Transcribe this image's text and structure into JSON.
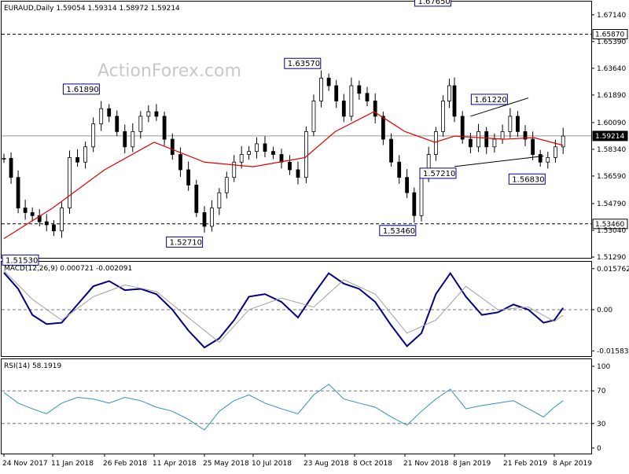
{
  "header": {
    "symbol_line": "EURAUD,Daily  1.59054 1.59314 1.58972 1.59214"
  },
  "watermark": "ActionForex.com",
  "colors": {
    "candle": "#000000",
    "ma": "#e00000",
    "macd": "#000080",
    "signal": "#a0a0a0",
    "rsi": "#2f8fc9",
    "hline": "#666666",
    "price_box_bg": "#000000",
    "price_box_text": "#ffffff"
  },
  "chart_data": [
    {
      "type": "candlestick",
      "title": "EURAUD,Daily",
      "ohlc_last": {
        "open": 1.59054,
        "high": 1.59314,
        "low": 1.58972,
        "close": 1.59214
      },
      "ylim": [
        1.5129,
        1.6785
      ],
      "y_ticks": [
        "1.67140",
        "1.65390",
        "1.63640",
        "1.61890",
        "1.60090",
        "1.58340",
        "1.56590",
        "1.54790",
        "1.53040",
        "1.51290"
      ],
      "x_tick_labels": [
        "24 Nov 2017",
        "11 Jan 2018",
        "26 Feb 2018",
        "11 Apr 2018",
        "25 May 2018",
        "10 Jul 2018",
        "23 Aug 2018",
        "8 Oct 2018",
        "21 Nov 2018",
        "8 Jan 2019",
        "21 Feb 2019",
        "8 Apr 2019"
      ],
      "x_tick_dates": [
        "2017-11-24",
        "2018-01-11",
        "2018-02-26",
        "2018-04-11",
        "2018-05-25",
        "2018-07-10",
        "2018-08-23",
        "2018-10-08",
        "2018-11-21",
        "2019-01-08",
        "2019-02-21",
        "2019-04-08"
      ],
      "horizontal_levels": [
        {
          "value": 1.6587,
          "label": "1.65870",
          "style": "dashed"
        },
        {
          "value": 1.5346,
          "label": "1.53460",
          "style": "dashed"
        },
        {
          "value": 1.59214,
          "label": "1.59214",
          "style": "solid"
        }
      ],
      "annotations": [
        {
          "label": "1.51530",
          "value": 1.5153,
          "date": "2017-12-08"
        },
        {
          "label": "1.61890",
          "value": 1.6189,
          "date": "2018-02-20"
        },
        {
          "label": "1.52710",
          "value": 1.5271,
          "date": "2018-05-22"
        },
        {
          "label": "1.63570",
          "value": 1.6357,
          "date": "2018-09-05"
        },
        {
          "label": "1.53460",
          "value": 1.5346,
          "date": "2018-11-30"
        },
        {
          "label": "1.67650",
          "value": 1.6765,
          "date": "2019-01-03"
        },
        {
          "label": "1.57210",
          "value": 1.5721,
          "date": "2019-01-08"
        },
        {
          "label": "1.61220",
          "value": 1.6122,
          "date": "2019-02-22"
        },
        {
          "label": "1.56830",
          "value": 1.5683,
          "date": "2019-03-29"
        }
      ],
      "close_series": [
        [
          "2017-11-24",
          1.5775
        ],
        [
          "2017-12-01",
          1.565
        ],
        [
          "2017-12-08",
          1.545
        ],
        [
          "2017-12-15",
          1.542
        ],
        [
          "2017-12-22",
          1.54
        ],
        [
          "2017-12-29",
          1.536
        ],
        [
          "2018-01-05",
          1.534
        ],
        [
          "2018-01-12",
          1.53
        ],
        [
          "2018-01-19",
          1.545
        ],
        [
          "2018-01-26",
          1.578
        ],
        [
          "2018-02-02",
          1.575
        ],
        [
          "2018-02-09",
          1.585
        ],
        [
          "2018-02-16",
          1.6
        ],
        [
          "2018-02-23",
          1.61
        ],
        [
          "2018-03-02",
          1.605
        ],
        [
          "2018-03-09",
          1.595
        ],
        [
          "2018-03-16",
          1.585
        ],
        [
          "2018-03-23",
          1.595
        ],
        [
          "2018-03-30",
          1.605
        ],
        [
          "2018-04-06",
          1.608
        ],
        [
          "2018-04-13",
          1.605
        ],
        [
          "2018-04-20",
          1.59
        ],
        [
          "2018-04-27",
          1.58
        ],
        [
          "2018-05-04",
          1.57
        ],
        [
          "2018-05-11",
          1.56
        ],
        [
          "2018-05-18",
          1.542
        ],
        [
          "2018-05-25",
          1.533
        ],
        [
          "2018-06-01",
          1.545
        ],
        [
          "2018-06-08",
          1.555
        ],
        [
          "2018-06-15",
          1.565
        ],
        [
          "2018-06-22",
          1.575
        ],
        [
          "2018-06-29",
          1.58
        ],
        [
          "2018-07-06",
          1.582
        ],
        [
          "2018-07-13",
          1.587
        ],
        [
          "2018-07-20",
          1.582
        ],
        [
          "2018-07-27",
          1.58
        ],
        [
          "2018-08-03",
          1.575
        ],
        [
          "2018-08-10",
          1.57
        ],
        [
          "2018-08-17",
          1.565
        ],
        [
          "2018-08-24",
          1.595
        ],
        [
          "2018-08-31",
          1.615
        ],
        [
          "2018-09-07",
          1.63
        ],
        [
          "2018-09-14",
          1.625
        ],
        [
          "2018-09-21",
          1.615
        ],
        [
          "2018-09-28",
          1.605
        ],
        [
          "2018-10-05",
          1.625
        ],
        [
          "2018-10-12",
          1.62
        ],
        [
          "2018-10-19",
          1.615
        ],
        [
          "2018-10-26",
          1.605
        ],
        [
          "2018-11-02",
          1.59
        ],
        [
          "2018-11-09",
          1.575
        ],
        [
          "2018-11-16",
          1.565
        ],
        [
          "2018-11-23",
          1.555
        ],
        [
          "2018-11-30",
          1.54
        ],
        [
          "2018-12-07",
          1.565
        ],
        [
          "2018-12-14",
          1.58
        ],
        [
          "2018-12-21",
          1.595
        ],
        [
          "2018-12-28",
          1.615
        ],
        [
          "2019-01-03",
          1.625
        ],
        [
          "2019-01-08",
          1.605
        ],
        [
          "2019-01-15",
          1.59
        ],
        [
          "2019-01-22",
          1.585
        ],
        [
          "2019-01-29",
          1.595
        ],
        [
          "2019-02-05",
          1.585
        ],
        [
          "2019-02-12",
          1.59
        ],
        [
          "2019-02-19",
          1.595
        ],
        [
          "2019-02-26",
          1.605
        ],
        [
          "2019-03-05",
          1.595
        ],
        [
          "2019-03-12",
          1.59
        ],
        [
          "2019-03-19",
          1.58
        ],
        [
          "2019-03-26",
          1.575
        ],
        [
          "2019-04-02",
          1.578
        ],
        [
          "2019-04-09",
          1.585
        ],
        [
          "2019-04-16",
          1.5921
        ]
      ],
      "ma_series": [
        [
          "2017-11-24",
          1.525
        ],
        [
          "2018-01-11",
          1.545
        ],
        [
          "2018-02-26",
          1.57
        ],
        [
          "2018-04-11",
          1.588
        ],
        [
          "2018-05-25",
          1.575
        ],
        [
          "2018-07-10",
          1.572
        ],
        [
          "2018-08-23",
          1.578
        ],
        [
          "2018-09-20",
          1.595
        ],
        [
          "2018-10-25",
          1.608
        ],
        [
          "2018-11-21",
          1.595
        ],
        [
          "2018-12-20",
          1.588
        ],
        [
          "2019-01-08",
          1.592
        ],
        [
          "2019-02-21",
          1.59
        ],
        [
          "2019-03-20",
          1.591
        ],
        [
          "2019-04-16",
          1.586
        ]
      ],
      "trendlines": [
        {
          "from": [
            "2019-01-08",
            1.5721
          ],
          "to": [
            "2019-03-29",
            1.579
          ]
        },
        {
          "from": [
            "2019-01-22",
            1.605
          ],
          "to": [
            "2019-03-15",
            1.617
          ]
        }
      ]
    },
    {
      "type": "line",
      "title": "MACD(12,26,9) 0.000721 -0.002091",
      "ylim": [
        -0.0175,
        0.0175
      ],
      "y_ticks": [
        "0.015762",
        "0.00",
        "-0.015834"
      ],
      "series": [
        {
          "name": "MACD",
          "points": [
            [
              "2017-11-24",
              0.0142
            ],
            [
              "2017-12-08",
              0.008
            ],
            [
              "2017-12-22",
              -0.002
            ],
            [
              "2018-01-05",
              -0.0055
            ],
            [
              "2018-01-19",
              -0.005
            ],
            [
              "2018-02-02",
              0.002
            ],
            [
              "2018-02-16",
              0.009
            ],
            [
              "2018-03-02",
              0.011
            ],
            [
              "2018-03-16",
              0.0075
            ],
            [
              "2018-03-30",
              0.008
            ],
            [
              "2018-04-13",
              0.006
            ],
            [
              "2018-04-27",
              0.0
            ],
            [
              "2018-05-11",
              -0.008
            ],
            [
              "2018-05-25",
              -0.0145
            ],
            [
              "2018-06-08",
              -0.011
            ],
            [
              "2018-06-22",
              -0.004
            ],
            [
              "2018-07-06",
              0.005
            ],
            [
              "2018-07-20",
              0.006
            ],
            [
              "2018-08-03",
              0.003
            ],
            [
              "2018-08-17",
              -0.003
            ],
            [
              "2018-08-31",
              0.006
            ],
            [
              "2018-09-14",
              0.014
            ],
            [
              "2018-09-28",
              0.01
            ],
            [
              "2018-10-12",
              0.008
            ],
            [
              "2018-10-26",
              0.003
            ],
            [
              "2018-11-09",
              -0.006
            ],
            [
              "2018-11-23",
              -0.014
            ],
            [
              "2018-12-07",
              -0.009
            ],
            [
              "2018-12-21",
              0.006
            ],
            [
              "2019-01-04",
              0.014
            ],
            [
              "2019-01-18",
              0.005
            ],
            [
              "2019-02-01",
              -0.002
            ],
            [
              "2019-02-15",
              -0.001
            ],
            [
              "2019-03-01",
              0.002
            ],
            [
              "2019-03-15",
              0.0
            ],
            [
              "2019-03-29",
              -0.005
            ],
            [
              "2019-04-08",
              -0.004
            ],
            [
              "2019-04-16",
              0.0007
            ]
          ]
        },
        {
          "name": "Signal",
          "points": [
            [
              "2017-11-24",
              0.015
            ],
            [
              "2017-12-22",
              0.004
            ],
            [
              "2018-01-19",
              -0.004
            ],
            [
              "2018-02-16",
              0.005
            ],
            [
              "2018-03-16",
              0.0095
            ],
            [
              "2018-04-13",
              0.007
            ],
            [
              "2018-05-11",
              -0.003
            ],
            [
              "2018-06-08",
              -0.0125
            ],
            [
              "2018-07-06",
              0.0
            ],
            [
              "2018-08-03",
              0.0045
            ],
            [
              "2018-08-31",
              0.001
            ],
            [
              "2018-09-28",
              0.0115
            ],
            [
              "2018-10-26",
              0.006
            ],
            [
              "2018-11-23",
              -0.009
            ],
            [
              "2018-12-21",
              -0.004
            ],
            [
              "2019-01-18",
              0.009
            ],
            [
              "2019-02-15",
              0.0
            ],
            [
              "2019-03-15",
              0.001
            ],
            [
              "2019-04-08",
              -0.0045
            ],
            [
              "2019-04-16",
              -0.0021
            ]
          ]
        }
      ]
    },
    {
      "type": "line",
      "title": "RSI(14) 58.1919",
      "ylim": [
        0,
        100
      ],
      "y_ticks": [
        "100",
        "70",
        "30",
        "0"
      ],
      "levels": [
        70,
        30
      ],
      "series": [
        {
          "name": "RSI(14)",
          "points": [
            [
              "2017-11-24",
              68
            ],
            [
              "2017-12-08",
              55
            ],
            [
              "2017-12-22",
              48
            ],
            [
              "2018-01-05",
              42
            ],
            [
              "2018-01-19",
              55
            ],
            [
              "2018-02-02",
              62
            ],
            [
              "2018-02-16",
              60
            ],
            [
              "2018-03-02",
              55
            ],
            [
              "2018-03-16",
              62
            ],
            [
              "2018-03-30",
              58
            ],
            [
              "2018-04-13",
              50
            ],
            [
              "2018-04-27",
              45
            ],
            [
              "2018-05-11",
              35
            ],
            [
              "2018-05-25",
              22
            ],
            [
              "2018-06-08",
              45
            ],
            [
              "2018-06-22",
              58
            ],
            [
              "2018-07-06",
              65
            ],
            [
              "2018-07-20",
              55
            ],
            [
              "2018-08-03",
              48
            ],
            [
              "2018-08-17",
              42
            ],
            [
              "2018-08-31",
              65
            ],
            [
              "2018-09-14",
              78
            ],
            [
              "2018-09-28",
              60
            ],
            [
              "2018-10-12",
              55
            ],
            [
              "2018-10-26",
              50
            ],
            [
              "2018-11-09",
              38
            ],
            [
              "2018-11-23",
              28
            ],
            [
              "2018-12-07",
              45
            ],
            [
              "2018-12-21",
              60
            ],
            [
              "2019-01-04",
              72
            ],
            [
              "2019-01-18",
              48
            ],
            [
              "2019-02-01",
              52
            ],
            [
              "2019-02-15",
              55
            ],
            [
              "2019-03-01",
              58
            ],
            [
              "2019-03-15",
              48
            ],
            [
              "2019-03-29",
              38
            ],
            [
              "2019-04-08",
              50
            ],
            [
              "2019-04-16",
              58
            ]
          ]
        }
      ]
    }
  ]
}
